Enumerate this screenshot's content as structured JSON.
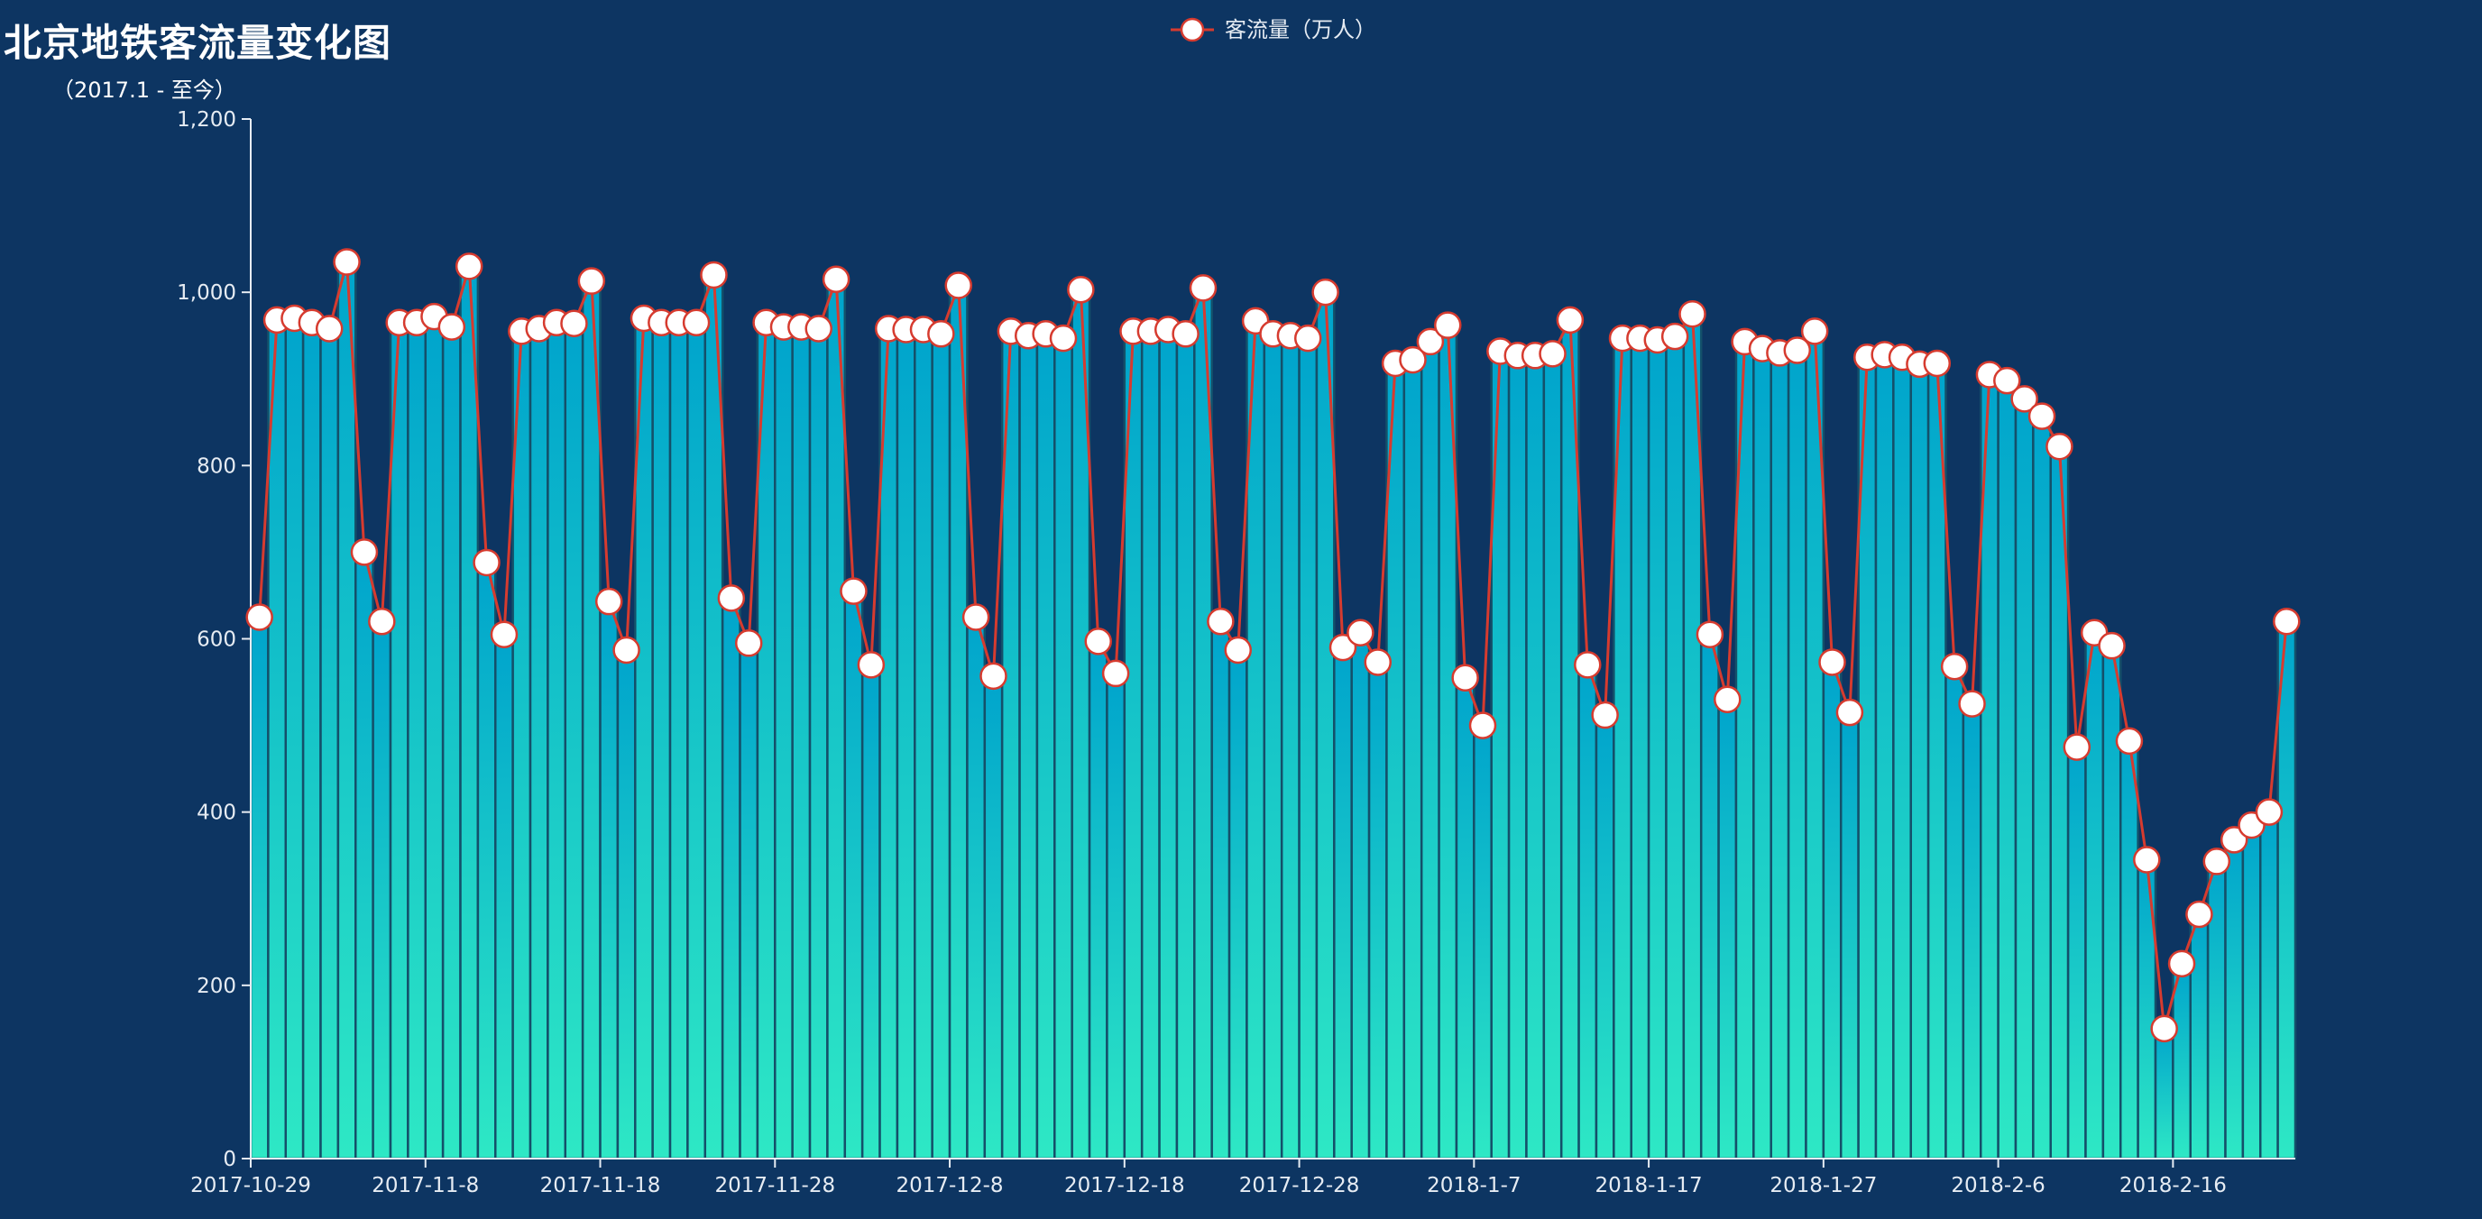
{
  "chart_data": {
    "type": "bar",
    "title": "北京地铁客流量变化图",
    "subtitle": "（2017.1 - 至今）",
    "series": [
      {
        "name": "客流量（万人）",
        "values": [
          625,
          968,
          970,
          965,
          958,
          1035,
          700,
          620,
          965,
          965,
          972,
          960,
          1030,
          688,
          605,
          955,
          958,
          965,
          964,
          1013,
          643,
          587,
          970,
          965,
          965,
          965,
          1020,
          647,
          595,
          965,
          960,
          960,
          958,
          1015,
          655,
          570,
          958,
          957,
          957,
          952,
          1008,
          625,
          557,
          955,
          950,
          952,
          947,
          1003,
          597,
          560,
          955,
          955,
          957,
          952,
          1005,
          620,
          587,
          967,
          952,
          950,
          947,
          1000,
          590,
          607,
          573,
          918,
          922,
          943,
          962,
          555,
          500,
          932,
          927,
          927,
          929,
          968,
          570,
          512,
          947,
          947,
          945,
          949,
          975,
          605,
          530,
          943,
          935,
          930,
          933,
          955,
          573,
          515,
          925,
          928,
          925,
          917,
          918,
          568,
          525,
          905,
          898,
          877,
          857,
          822,
          475,
          607,
          592,
          482,
          345,
          150,
          225,
          282,
          343,
          368,
          385,
          400,
          620
        ]
      }
    ],
    "x_tick_labels": [
      "2017-10-29",
      "2017-11-8",
      "2017-11-18",
      "2017-11-28",
      "2017-12-8",
      "2017-12-18",
      "2017-12-28",
      "2018-1-7",
      "2018-1-17",
      "2018-1-27",
      "2018-2-6",
      "2018-2-16"
    ],
    "x_tick_interval_days": 10,
    "ylim": [
      0,
      1200
    ],
    "y_ticks": [
      0,
      200,
      400,
      600,
      800,
      1000,
      1200
    ],
    "y_tick_labels": [
      "0",
      "200",
      "400",
      "600",
      "800",
      "1,000",
      "1,200"
    ],
    "legend_position": "top-center",
    "grid": false,
    "colors": {
      "background": "#0d3562",
      "bar_top": "#00a4cc",
      "bar_bottom": "#2ee8c5",
      "bar_border": "#14506a",
      "line": "#d63b2f",
      "marker_fill": "#ffffff",
      "marker_stroke": "#d63b2f",
      "axis": "#e6ecf3"
    }
  }
}
